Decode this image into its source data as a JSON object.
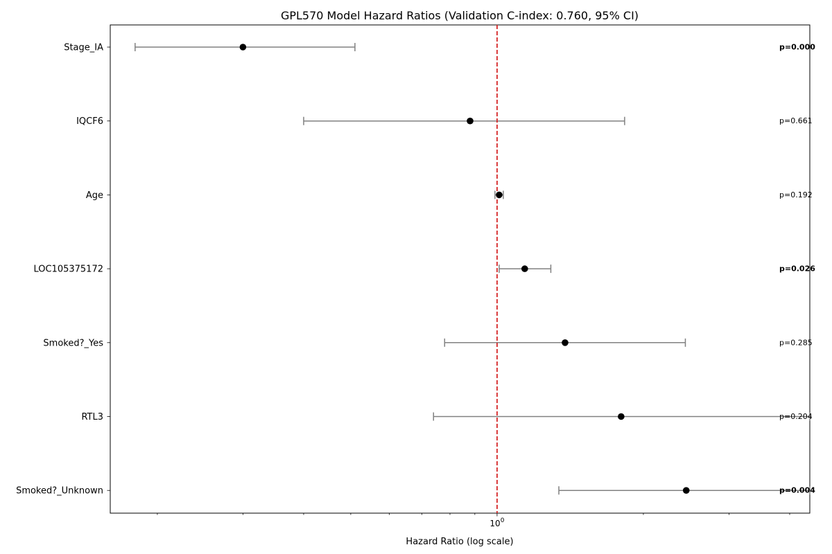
{
  "chart_data": {
    "type": "scatter",
    "title": "GPL570 Model Hazard Ratios (Validation C-index: 0.760, 95% CI)",
    "xlabel": "Hazard Ratio (log scale)",
    "ylabel": "",
    "xscale": "log",
    "xlim": [
      0.16,
      4.4
    ],
    "x_tick_label": {
      "base": "10",
      "exponent": "0"
    },
    "reference_line": {
      "value": 1.0,
      "color": "#d62728",
      "style": "dashed"
    },
    "grid": false,
    "colors": {
      "point": "#000000",
      "ci": "#808080"
    },
    "variables": [
      {
        "name": "Stage_IA",
        "hr": 0.3,
        "ci_low": 0.18,
        "ci_high": 0.51,
        "p_label": "p=0.000",
        "significant": true
      },
      {
        "name": "IQCF6",
        "hr": 0.88,
        "ci_low": 0.4,
        "ci_high": 1.83,
        "p_label": "p=0.661",
        "significant": false
      },
      {
        "name": "Age",
        "hr": 1.01,
        "ci_low": 0.99,
        "ci_high": 1.03,
        "p_label": "p=0.192",
        "significant": false
      },
      {
        "name": "LOC105375172",
        "hr": 1.14,
        "ci_low": 1.01,
        "ci_high": 1.29,
        "p_label": "p=0.026",
        "significant": true
      },
      {
        "name": "Smoked?_Yes",
        "hr": 1.38,
        "ci_low": 0.78,
        "ci_high": 2.44,
        "p_label": "p=0.285",
        "significant": false
      },
      {
        "name": "RTL3",
        "hr": 1.8,
        "ci_low": 0.74,
        "ci_high": 4.4,
        "p_label": "p=0.204",
        "significant": false
      },
      {
        "name": "Smoked?_Unknown",
        "hr": 2.45,
        "ci_low": 1.34,
        "ci_high": 4.4,
        "p_label": "p=0.004",
        "significant": true
      }
    ]
  }
}
